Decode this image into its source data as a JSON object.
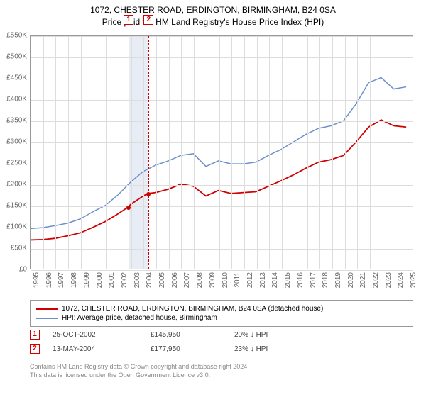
{
  "title": {
    "line1": "1072, CHESTER ROAD, ERDINGTON, BIRMINGHAM, B24 0SA",
    "line2": "Price paid vs. HM Land Registry's House Price Index (HPI)"
  },
  "chart": {
    "type": "line",
    "background_color": "#ffffff",
    "grid_color": "#dddddd",
    "border_color": "#999999",
    "xlim": [
      1995,
      2025.5
    ],
    "ylim": [
      0,
      550000
    ],
    "ytick_step": 50000,
    "ytick_labels": [
      "£0",
      "£50K",
      "£100K",
      "£150K",
      "£200K",
      "£250K",
      "£300K",
      "£350K",
      "£400K",
      "£450K",
      "£500K",
      "£550K"
    ],
    "xtick_labels": [
      "1995",
      "1996",
      "1997",
      "1998",
      "1999",
      "2000",
      "2001",
      "2002",
      "2003",
      "2004",
      "2005",
      "2006",
      "2007",
      "2008",
      "2009",
      "2010",
      "2011",
      "2012",
      "2013",
      "2014",
      "2015",
      "2016",
      "2017",
      "2018",
      "2019",
      "2020",
      "2021",
      "2022",
      "2023",
      "2024",
      "2025"
    ],
    "title_fontsize": 12,
    "label_fontsize": 10,
    "band": {
      "x_start": 2002.8,
      "x_end": 2004.4,
      "color": "#e8ecf5"
    },
    "markers": [
      {
        "id": "1",
        "x": 2002.8,
        "y": 145950,
        "color": "#d00000"
      },
      {
        "id": "2",
        "x": 2004.4,
        "y": 177950,
        "color": "#d00000"
      }
    ],
    "series": [
      {
        "name": "1072, CHESTER ROAD, ERDINGTON, BIRMINGHAM, B24 0SA (detached house)",
        "color": "#d00000",
        "line_width": 1.8,
        "points": [
          [
            1995,
            68000
          ],
          [
            1996,
            69000
          ],
          [
            1997,
            72000
          ],
          [
            1998,
            78000
          ],
          [
            1999,
            85000
          ],
          [
            2000,
            98000
          ],
          [
            2001,
            112000
          ],
          [
            2002,
            130000
          ],
          [
            2002.8,
            145950
          ],
          [
            2003,
            152000
          ],
          [
            2004,
            172000
          ],
          [
            2004.4,
            177950
          ],
          [
            2005,
            180000
          ],
          [
            2006,
            188000
          ],
          [
            2007,
            200000
          ],
          [
            2008,
            195000
          ],
          [
            2009,
            172000
          ],
          [
            2010,
            185000
          ],
          [
            2011,
            178000
          ],
          [
            2012,
            180000
          ],
          [
            2013,
            182000
          ],
          [
            2014,
            195000
          ],
          [
            2015,
            208000
          ],
          [
            2016,
            222000
          ],
          [
            2017,
            238000
          ],
          [
            2018,
            252000
          ],
          [
            2019,
            258000
          ],
          [
            2020,
            268000
          ],
          [
            2021,
            300000
          ],
          [
            2022,
            335000
          ],
          [
            2023,
            352000
          ],
          [
            2024,
            338000
          ],
          [
            2025,
            335000
          ]
        ]
      },
      {
        "name": "HPI: Average price, detached house, Birmingham",
        "color": "#6b8fc9",
        "line_width": 1.5,
        "points": [
          [
            1995,
            95000
          ],
          [
            1996,
            97000
          ],
          [
            1997,
            102000
          ],
          [
            1998,
            108000
          ],
          [
            1999,
            118000
          ],
          [
            2000,
            135000
          ],
          [
            2001,
            150000
          ],
          [
            2002,
            175000
          ],
          [
            2003,
            205000
          ],
          [
            2004,
            230000
          ],
          [
            2005,
            245000
          ],
          [
            2006,
            255000
          ],
          [
            2007,
            268000
          ],
          [
            2008,
            272000
          ],
          [
            2009,
            242000
          ],
          [
            2010,
            255000
          ],
          [
            2011,
            248000
          ],
          [
            2012,
            248000
          ],
          [
            2013,
            252000
          ],
          [
            2014,
            268000
          ],
          [
            2015,
            282000
          ],
          [
            2016,
            300000
          ],
          [
            2017,
            318000
          ],
          [
            2018,
            332000
          ],
          [
            2019,
            338000
          ],
          [
            2020,
            350000
          ],
          [
            2021,
            390000
          ],
          [
            2022,
            440000
          ],
          [
            2023,
            452000
          ],
          [
            2024,
            425000
          ],
          [
            2025,
            430000
          ]
        ]
      }
    ]
  },
  "legend": {
    "items": [
      {
        "color": "#d00000",
        "label": "1072, CHESTER ROAD, ERDINGTON, BIRMINGHAM, B24 0SA (detached house)"
      },
      {
        "color": "#6b8fc9",
        "label": "HPI: Average price, detached house, Birmingham"
      }
    ]
  },
  "data_rows": [
    {
      "badge": "1",
      "date": "25-OCT-2002",
      "price": "£145,950",
      "delta": "20% ↓ HPI"
    },
    {
      "badge": "2",
      "date": "13-MAY-2004",
      "price": "£177,950",
      "delta": "23% ↓ HPI"
    }
  ],
  "footer": {
    "line1": "Contains HM Land Registry data © Crown copyright and database right 2024.",
    "line2": "This data is licensed under the Open Government Licence v3.0."
  }
}
